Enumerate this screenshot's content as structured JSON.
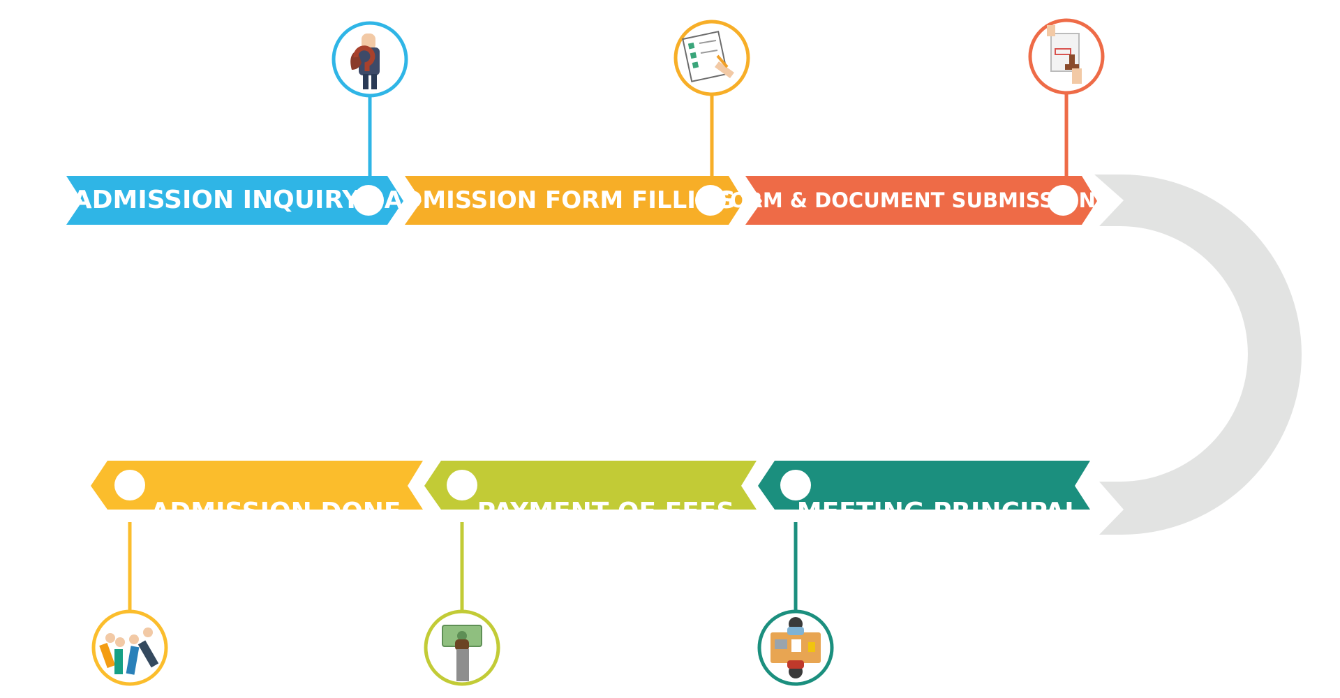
{
  "steps": [
    {
      "label": "ADMISSION INQUIRY",
      "color": "#2fb5e6",
      "icon": "businessman-with-question-mark-icon"
    },
    {
      "label": "ADMISSION FORM FILLING",
      "color": "#f7ae27",
      "icon": "checklist-form-with-pencil-icon"
    },
    {
      "label": "FORM & DOCUMENT SUBMISSION",
      "color": "#ee6b47",
      "icon": "document-approval-stamp-icon"
    },
    {
      "label": "MEETING PRINCIPAL",
      "color": "#1b8f7e",
      "icon": "meeting-at-desk-icon"
    },
    {
      "label": "PAYMENT OF FEES",
      "color": "#c2cb36",
      "icon": "hand-holding-money-icon"
    },
    {
      "label": "ADMISSION DONE",
      "color": "#fbbd2c",
      "icon": "thumbs-up-hands-icon"
    }
  ],
  "connector_color": "#e2e3e2"
}
